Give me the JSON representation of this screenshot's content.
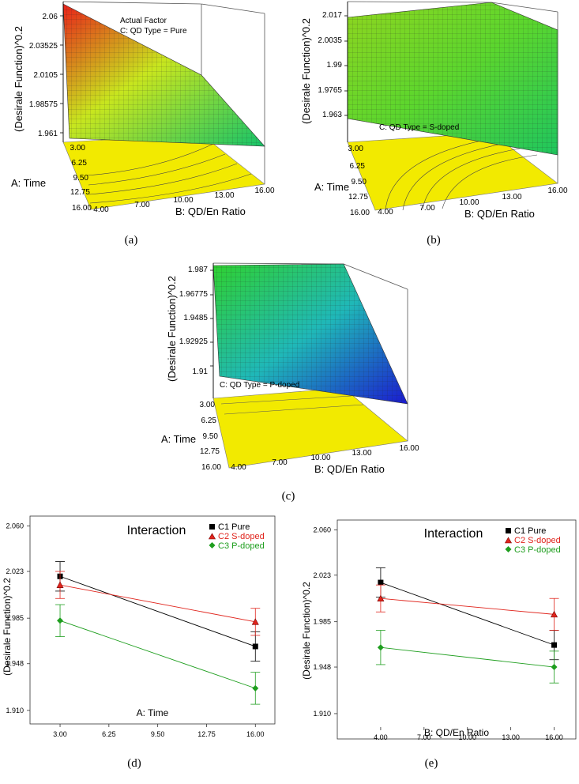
{
  "chart_data": [
    {
      "type": "surface3d",
      "caption": "(a)",
      "zlabel": "(Desirale Function)^0.2",
      "zticks": [
        "2.06",
        "2.03525",
        "2.0105",
        "1.98575",
        "1.961"
      ],
      "xlabel": "B: QD/En Ratio",
      "xticks": [
        "4.00",
        "7.00",
        "10.00",
        "13.00",
        "16.00"
      ],
      "ylabel": "A: Time",
      "yticks": [
        "3.00",
        "6.25",
        "9.50",
        "12.75",
        "16.00"
      ],
      "factor_title": "Actual Factor",
      "factor": "C: QD Type = Pure",
      "corners": {
        "time3_ratio4": 2.06,
        "time3_ratio16": 1.99,
        "time16_ratio4": 1.99,
        "time16_ratio16": 1.961
      },
      "colors": {
        "high": "#e8211a",
        "mid": "#c8e61e",
        "low": "#15c46a"
      }
    },
    {
      "type": "surface3d",
      "caption": "(b)",
      "zlabel": "(Desirale Function)^0.2",
      "zticks": [
        "2.017",
        "2.0035",
        "1.99",
        "1.9765",
        "1.963"
      ],
      "xlabel": "B: QD/En Ratio",
      "xticks": [
        "4.00",
        "7.00",
        "10.00",
        "13.00",
        "16.00"
      ],
      "ylabel": "A: Time",
      "yticks": [
        "3.00",
        "6.25",
        "9.50",
        "12.75",
        "16.00"
      ],
      "factor": "C: QD Type = S-doped",
      "corners": {
        "time3_ratio4": 2.012,
        "time3_ratio16": 2.017,
        "time16_ratio4": 1.968,
        "time16_ratio16": 1.963
      },
      "colors": {
        "high": "#8fd51f",
        "mid": "#5bd62e",
        "low": "#1fc65e"
      }
    },
    {
      "type": "surface3d",
      "caption": "(c)",
      "zlabel": "(Desirale Function)^0.2",
      "zticks": [
        "1.987",
        "1.96775",
        "1.9485",
        "1.92925",
        "1.91"
      ],
      "xlabel": "B: QD/En Ratio",
      "xticks": [
        "4.00",
        "7.00",
        "10.00",
        "13.00",
        "16.00"
      ],
      "ylabel": "A: Time",
      "yticks": [
        "3.00",
        "6.25",
        "9.50",
        "12.75",
        "16.00"
      ],
      "factor": "C: QD Type = P-doped",
      "corners": {
        "time3_ratio4": 1.987,
        "time3_ratio16": 1.975,
        "time16_ratio4": 1.93,
        "time16_ratio16": 1.91
      },
      "colors": {
        "high": "#2fd12f",
        "mid": "#1fb8b8",
        "low": "#1a1ad0"
      }
    },
    {
      "type": "line",
      "caption": "(d)",
      "title": "Interaction",
      "xlabel": "A: Time",
      "ylabel": "(Desirale Function)^0.2",
      "x_positions": [
        3.0,
        16.0
      ],
      "xticks": [
        "3.00",
        "6.25",
        "9.50",
        "12.75",
        "16.00"
      ],
      "xlim": [
        1.0,
        17.3
      ],
      "yticks": [
        "2.060",
        "2.023",
        "1.985",
        "1.948",
        "1.910"
      ],
      "ylim": [
        1.899,
        2.068
      ],
      "series": [
        {
          "name": "C1 Pure",
          "color": "#000000",
          "marker": "square",
          "values": [
            2.019,
            1.962
          ],
          "err": [
            0.012,
            0.012
          ]
        },
        {
          "name": "C2 S-doped",
          "color": "#e0241c",
          "marker": "triangle",
          "values": [
            2.012,
            1.982
          ],
          "err": [
            0.011,
            0.011
          ]
        },
        {
          "name": "C3 P-doped",
          "color": "#1e9e1e",
          "marker": "diamond",
          "values": [
            1.983,
            1.928
          ],
          "err": [
            0.013,
            0.013
          ]
        }
      ]
    },
    {
      "type": "line",
      "caption": "(e)",
      "title": "Interaction",
      "xlabel": "B: QD/En Ratio",
      "ylabel": "(Desirale Function)^0.2",
      "x_positions": [
        4.0,
        16.0
      ],
      "xticks": [
        "4.00",
        "7.00",
        "10.00",
        "13.00",
        "16.00"
      ],
      "xlim": [
        1.0,
        17.5
      ],
      "yticks": [
        "2.060",
        "2.023",
        "1.985",
        "1.948",
        "1.910"
      ],
      "ylim": [
        1.899,
        2.068
      ],
      "series": [
        {
          "name": "C1 Pure",
          "color": "#000000",
          "marker": "square",
          "values": [
            2.017,
            1.966
          ],
          "err": [
            0.012,
            0.012
          ]
        },
        {
          "name": "C2 S-doped",
          "color": "#e0241c",
          "marker": "triangle",
          "values": [
            2.004,
            1.991
          ],
          "err": [
            0.011,
            0.013
          ]
        },
        {
          "name": "C3 P-doped",
          "color": "#1e9e1e",
          "marker": "diamond",
          "values": [
            1.964,
            1.948
          ],
          "err": [
            0.014,
            0.013
          ]
        }
      ]
    }
  ]
}
